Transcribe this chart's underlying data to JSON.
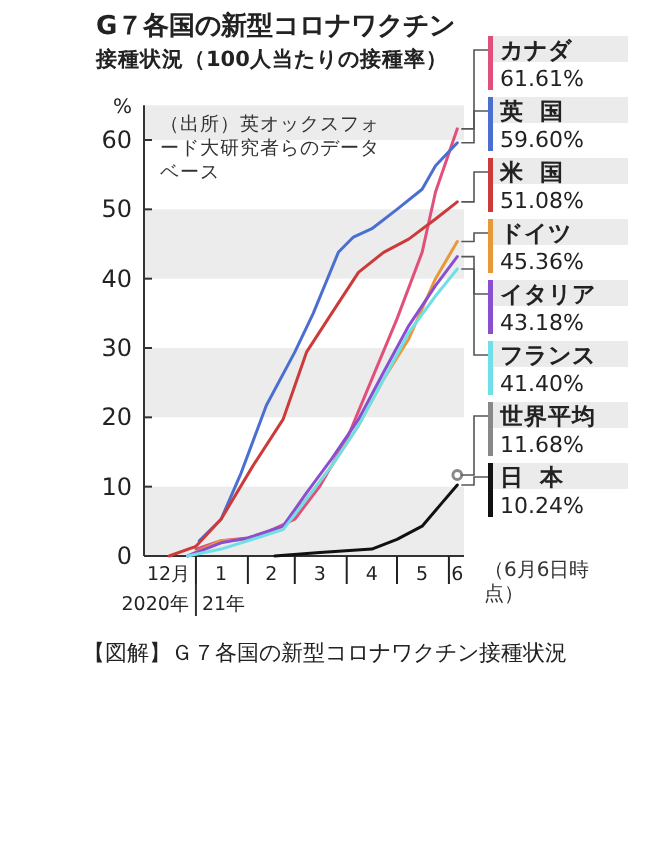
{
  "chart_data": {
    "type": "line",
    "title": "G７各国の新型コロナワクチン",
    "subtitle": "接種状況（100人当たりの接種率）",
    "ylabel": "%",
    "annotations": [
      "（出所）英オックスフォード大研究者らのデータベース",
      "2020年",
      "21年",
      "（6月6日時点）",
      "【図解】Ｇ７各国の新型コロナワクチン接種状況"
    ],
    "xlim": [
      "2020-12-01",
      "2021-06-10"
    ],
    "xticks": [
      {
        "value": "2020-12-16",
        "label": "12月"
      },
      {
        "value": "2021-01-01",
        "label": null
      },
      {
        "value": "2021-01-16",
        "label": "1"
      },
      {
        "value": "2021-02-01",
        "label": null
      },
      {
        "value": "2021-02-15",
        "label": "2"
      },
      {
        "value": "2021-03-01",
        "label": null
      },
      {
        "value": "2021-03-16",
        "label": "3"
      },
      {
        "value": "2021-04-01",
        "label": null
      },
      {
        "value": "2021-04-16",
        "label": "4"
      },
      {
        "value": "2021-05-01",
        "label": null
      },
      {
        "value": "2021-05-16",
        "label": "5"
      },
      {
        "value": "2021-06-01",
        "label": null
      },
      {
        "value": "2021-06-06",
        "label": "6"
      }
    ],
    "ylim": [
      0,
      65
    ],
    "yticks": [
      0,
      10,
      20,
      30,
      40,
      50,
      60
    ],
    "bands": [
      {
        "axis": "y",
        "from": 0,
        "to": 10,
        "color": "#ececec"
      },
      {
        "axis": "y",
        "from": 20,
        "to": 30,
        "color": "#ececec"
      },
      {
        "axis": "y",
        "from": 40,
        "to": 50,
        "color": "#ececec"
      },
      {
        "axis": "y",
        "from": 60,
        "to": 65,
        "color": "#ececec"
      }
    ],
    "legend": "right",
    "series": [
      {
        "name": "カナダ",
        "color": "#e0507a",
        "x": [
          "2021-01-01",
          "2021-01-16",
          "2021-02-01",
          "2021-02-12",
          "2021-03-01",
          "2021-03-16",
          "2021-04-01",
          "2021-04-16",
          "2021-05-01",
          "2021-05-16",
          "2021-05-24",
          "2021-06-06"
        ],
        "values": [
          1,
          2.2,
          2.6,
          3.4,
          5.3,
          10.1,
          16.8,
          25.5,
          34.2,
          43.8,
          52.5,
          61.61
        ],
        "value_labels": [
          null,
          null,
          null,
          null,
          null,
          null,
          null,
          null,
          null,
          null,
          null,
          "61.61%"
        ]
      },
      {
        "name": "英国",
        "color": "#4a6fd0",
        "x": [
          "2021-01-03",
          "2021-01-16",
          "2021-01-28",
          "2021-02-12",
          "2021-03-01",
          "2021-03-12",
          "2021-03-27",
          "2021-04-05",
          "2021-04-16",
          "2021-05-01",
          "2021-05-16",
          "2021-05-24",
          "2021-06-06"
        ],
        "values": [
          2.2,
          5.3,
          12,
          21.7,
          29.4,
          35,
          43.8,
          46,
          47.2,
          50,
          52.9,
          56.3,
          59.6
        ],
        "value_labels": [
          null,
          null,
          null,
          null,
          null,
          null,
          null,
          null,
          null,
          null,
          null,
          null,
          "59.60%"
        ]
      },
      {
        "name": "米国",
        "color": "#cc3a3a",
        "x": [
          "2020-12-16",
          "2021-01-01",
          "2021-01-16",
          "2021-02-04",
          "2021-02-22",
          "2021-03-08",
          "2021-03-23",
          "2021-04-08",
          "2021-04-23",
          "2021-05-08",
          "2021-05-24",
          "2021-06-06"
        ],
        "values": [
          0,
          1.4,
          5.3,
          13,
          19.7,
          29.4,
          35,
          40.9,
          43.8,
          45.7,
          48.6,
          51.08
        ],
        "value_labels": [
          null,
          null,
          null,
          null,
          null,
          null,
          null,
          null,
          null,
          null,
          null,
          "51.08%"
        ]
      },
      {
        "name": "ドイツ",
        "color": "#e8983a",
        "x": [
          "2020-12-27",
          "2021-01-16",
          "2021-02-01",
          "2021-02-22",
          "2021-03-08",
          "2021-03-23",
          "2021-04-08",
          "2021-04-23",
          "2021-05-08",
          "2021-05-24",
          "2021-06-06"
        ],
        "values": [
          0,
          2.2,
          2.4,
          4.3,
          8.2,
          13,
          18.8,
          25.5,
          31.3,
          40,
          45.36
        ],
        "value_labels": [
          null,
          null,
          null,
          null,
          null,
          null,
          null,
          null,
          null,
          null,
          "45.36%"
        ]
      },
      {
        "name": "イタリア",
        "color": "#8a4fd0",
        "x": [
          "2020-12-27",
          "2021-01-16",
          "2021-02-01",
          "2021-02-22",
          "2021-03-08",
          "2021-03-23",
          "2021-04-08",
          "2021-04-23",
          "2021-05-08",
          "2021-05-24",
          "2021-06-06"
        ],
        "values": [
          0,
          1.9,
          2.6,
          4.3,
          9.1,
          14,
          19.7,
          26.5,
          33.2,
          39,
          43.18
        ],
        "value_labels": [
          null,
          null,
          null,
          null,
          null,
          null,
          null,
          null,
          null,
          null,
          "43.18%"
        ]
      },
      {
        "name": "フランス",
        "color": "#6fe0e8",
        "x": [
          "2020-12-27",
          "2021-01-16",
          "2021-02-01",
          "2021-02-22",
          "2021-03-08",
          "2021-03-23",
          "2021-04-08",
          "2021-04-23",
          "2021-05-08",
          "2021-05-24",
          "2021-06-06"
        ],
        "values": [
          0,
          1,
          2.2,
          3.8,
          8.2,
          13,
          18.8,
          25.5,
          32.2,
          37.5,
          41.4
        ],
        "value_labels": [
          null,
          null,
          null,
          null,
          null,
          null,
          null,
          null,
          null,
          null,
          "41.40%"
        ]
      },
      {
        "name": "世界平均",
        "type": "scatter",
        "marker": "circle",
        "color": "#888888",
        "x": [
          "2021-06-06"
        ],
        "values": [
          11.68
        ],
        "value_labels": [
          "11.68%"
        ]
      },
      {
        "name": "日本",
        "color": "#111111",
        "x": [
          "2021-02-17",
          "2021-03-16",
          "2021-04-16",
          "2021-05-01",
          "2021-05-16",
          "2021-05-28",
          "2021-06-06"
        ],
        "values": [
          0,
          0.5,
          1,
          2.4,
          4.3,
          7.7,
          10.24
        ],
        "value_labels": [
          null,
          null,
          null,
          null,
          null,
          null,
          "10.24%"
        ]
      }
    ]
  }
}
